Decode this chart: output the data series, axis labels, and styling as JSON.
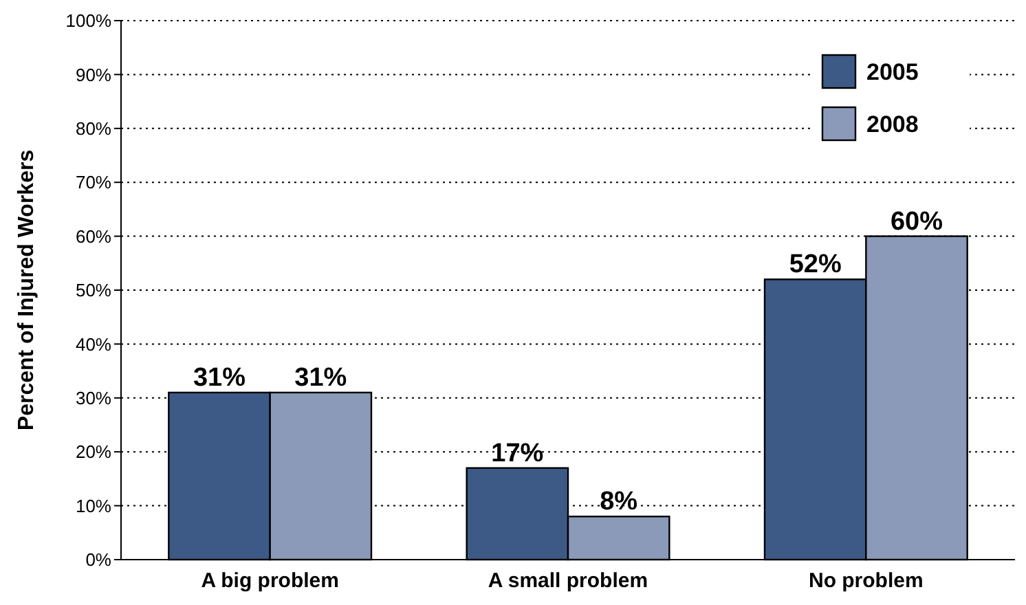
{
  "chart_data": {
    "type": "bar",
    "ylabel": "Percent of Injured Workers",
    "categories": [
      "A big problem",
      "A small problem",
      "No problem"
    ],
    "series": [
      {
        "name": "2005",
        "color": "#3d5a87",
        "values": [
          31,
          17,
          52
        ],
        "value_labels": [
          "31%",
          "17%",
          "52%"
        ]
      },
      {
        "name": "2008",
        "color": "#8a9ab8",
        "values": [
          31,
          8,
          60
        ],
        "value_labels": [
          "31%",
          "8%",
          "60%"
        ]
      }
    ],
    "ylim": [
      0,
      100
    ],
    "yticks": [
      {
        "value": 0,
        "label": "0%"
      },
      {
        "value": 10,
        "label": "10%"
      },
      {
        "value": 20,
        "label": "20%"
      },
      {
        "value": 30,
        "label": "30%"
      },
      {
        "value": 40,
        "label": "40%"
      },
      {
        "value": 50,
        "label": "50%"
      },
      {
        "value": 60,
        "label": "60%"
      },
      {
        "value": 70,
        "label": "70%"
      },
      {
        "value": 80,
        "label": "80%"
      },
      {
        "value": 90,
        "label": "90%"
      },
      {
        "value": 100,
        "label": "100%"
      }
    ],
    "grid": "y",
    "legend": "top right"
  }
}
